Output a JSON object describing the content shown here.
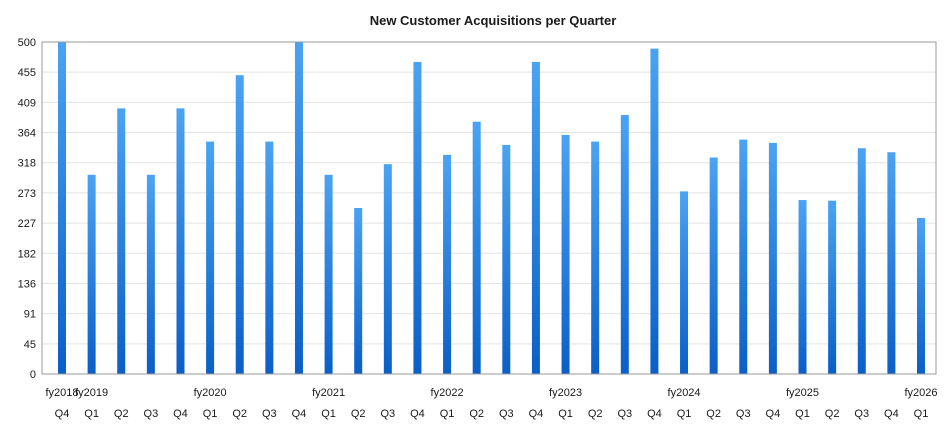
{
  "chart_data": {
    "type": "bar",
    "title": "New Customer Acquisitions per Quarter",
    "xlabel": "",
    "ylabel": "",
    "ylim": [
      0,
      500
    ],
    "yticks": [
      "0",
      "45",
      "91",
      "136",
      "182",
      "227",
      "273",
      "318",
      "364",
      "409",
      "455",
      "500"
    ],
    "categories": [
      "Q4",
      "Q1",
      "Q2",
      "Q3",
      "Q4",
      "Q1",
      "Q2",
      "Q3",
      "Q4",
      "Q1",
      "Q2",
      "Q3",
      "Q4",
      "Q1",
      "Q2",
      "Q3",
      "Q4",
      "Q1",
      "Q2",
      "Q3",
      "Q4",
      "Q1",
      "Q2",
      "Q3",
      "Q4",
      "Q1",
      "Q2",
      "Q3",
      "Q4",
      "Q1"
    ],
    "fiscal_years": [
      "fy2018",
      "fy2019",
      "",
      "",
      "",
      "fy2020",
      "",
      "",
      "",
      "fy2021",
      "",
      "",
      "",
      "fy2022",
      "",
      "",
      "",
      "fy2023",
      "",
      "",
      "",
      "fy2024",
      "",
      "",
      "",
      "fy2025",
      "",
      "",
      "",
      "fy2026"
    ],
    "values": [
      500,
      300,
      400,
      300,
      400,
      350,
      450,
      350,
      500,
      300,
      250,
      316,
      470,
      330,
      380,
      345,
      470,
      360,
      350,
      390,
      490,
      275,
      326,
      353,
      348,
      262,
      261,
      340,
      334,
      235
    ],
    "grid": true,
    "bar_color_top": "#4aa3f2",
    "bar_color_bottom": "#0a5fc8"
  }
}
